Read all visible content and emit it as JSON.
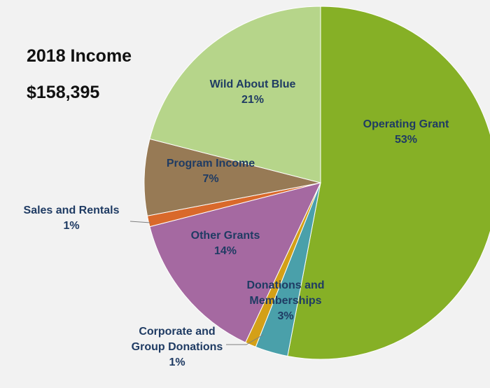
{
  "title": {
    "line1": "2018 Income",
    "line2": "$158,395"
  },
  "chart_data": {
    "type": "pie",
    "slices": [
      {
        "name": "Operating Grant",
        "label_lines": [
          "Operating Grant",
          "53%"
        ],
        "value": 53,
        "color": "#86b026",
        "label_color": "#1f3b63"
      },
      {
        "name": "Donations and Memberships",
        "label_lines": [
          "Donations and",
          "Memberships",
          "3%"
        ],
        "value": 3,
        "color": "#4aa0aa",
        "label_color": "#1f3b63"
      },
      {
        "name": "Corporate and Group Donations",
        "label_lines": [
          "Corporate and",
          "Group Donations",
          "1%"
        ],
        "value": 1,
        "color": "#d4a017",
        "label_color": "#1f3b63"
      },
      {
        "name": "Other Grants",
        "label_lines": [
          "Other Grants",
          "14%"
        ],
        "value": 14,
        "color": "#a569a1",
        "label_color": "#1f3b63"
      },
      {
        "name": "Sales and Rentals",
        "label_lines": [
          "Sales and Rentals",
          "1%"
        ],
        "value": 1,
        "color": "#d9692b",
        "label_color": "#1f3b63"
      },
      {
        "name": "Program Income",
        "label_lines": [
          "Program Income",
          "7%"
        ],
        "value": 7,
        "color": "#977a55",
        "label_color": "#1f3b63"
      },
      {
        "name": "Wild About Blue",
        "label_lines": [
          "Wild About Blue",
          "21%"
        ],
        "value": 21,
        "color": "#b6d58a",
        "label_color": "#1f3b63"
      }
    ],
    "start": "12 o'clock",
    "direction": "clockwise",
    "legend": "none",
    "data_labels": "on or beside slices"
  }
}
